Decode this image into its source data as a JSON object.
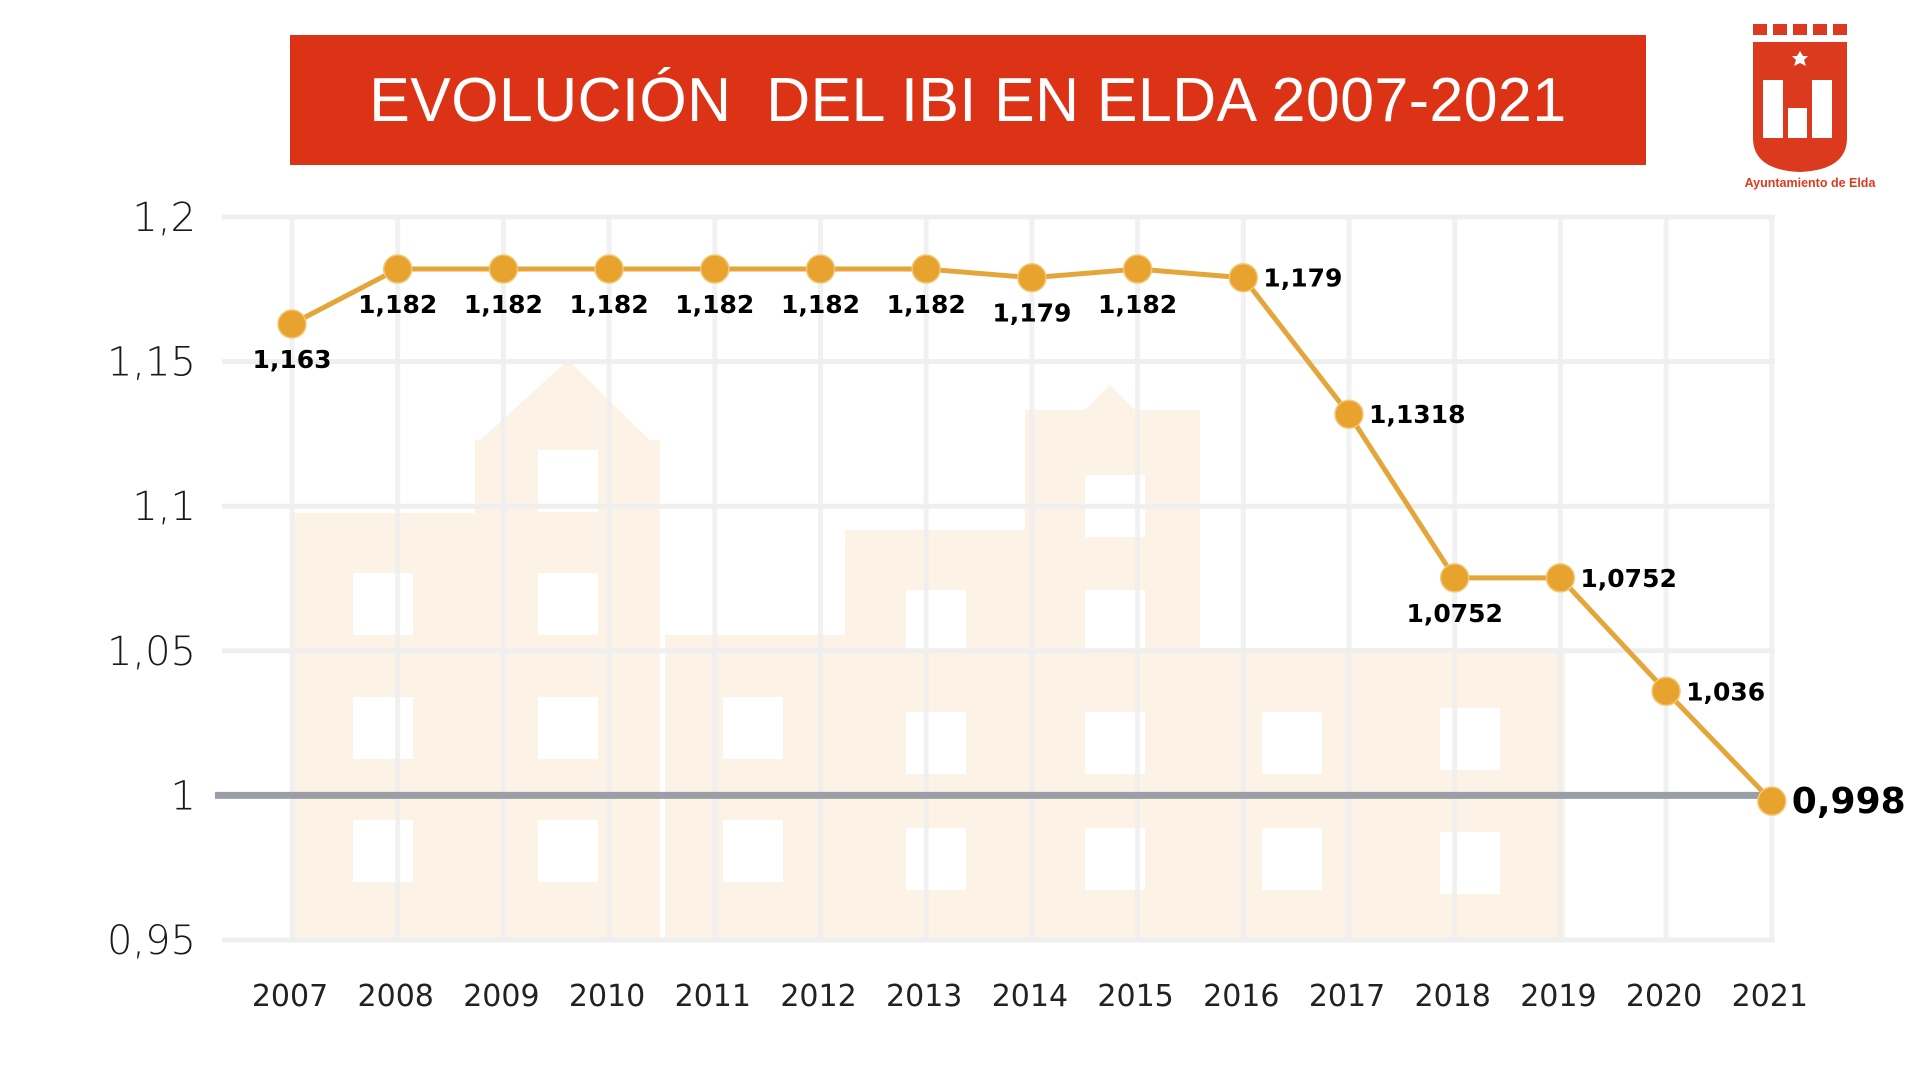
{
  "header": {
    "title": "EVOLUCIÓN  DEL IBI EN ELDA 2007-2021",
    "logo_caption": "Ayuntamiento de Elda",
    "logo_icon": "coat-of-arms-icon"
  },
  "colors": {
    "title_bg": "#dc3316",
    "line": "#e4a53a",
    "marker": "#e8a22e",
    "reference_line": "#9a9ea6",
    "grid": "#efefef",
    "watermark": "#fcf3e6",
    "logo": "#dc3a1e"
  },
  "chart_data": {
    "type": "line",
    "title": "EVOLUCIÓN  DEL IBI EN ELDA 2007-2021",
    "xlabel": "",
    "ylabel": "",
    "categories": [
      "2007",
      "2008",
      "2009",
      "2010",
      "2011",
      "2012",
      "2013",
      "2014",
      "2015",
      "2016",
      "2017",
      "2018",
      "2019",
      "2020",
      "2021"
    ],
    "series": [
      {
        "name": "IBI",
        "values": [
          1.163,
          1.182,
          1.182,
          1.182,
          1.182,
          1.182,
          1.182,
          1.179,
          1.182,
          1.179,
          1.1318,
          1.0752,
          1.0752,
          1.036,
          0.998
        ],
        "labels": [
          "1,163",
          "1,182",
          "1,182",
          "1,182",
          "1,182",
          "1,182",
          "1,182",
          "1,179",
          "1,182",
          "1,179",
          "1,1318",
          "1,0752",
          "1,0752",
          "1,036",
          "0,998"
        ]
      }
    ],
    "ylim": [
      0.95,
      1.2
    ],
    "yticks": [
      1.2,
      1.15,
      1.1,
      1.05,
      1.0,
      0.95
    ],
    "ytick_labels": [
      "1,2",
      "1,15",
      "1,1",
      "1,05",
      "1",
      "0,95"
    ],
    "reference_line": 1.0,
    "grid": true,
    "legend": "none"
  }
}
